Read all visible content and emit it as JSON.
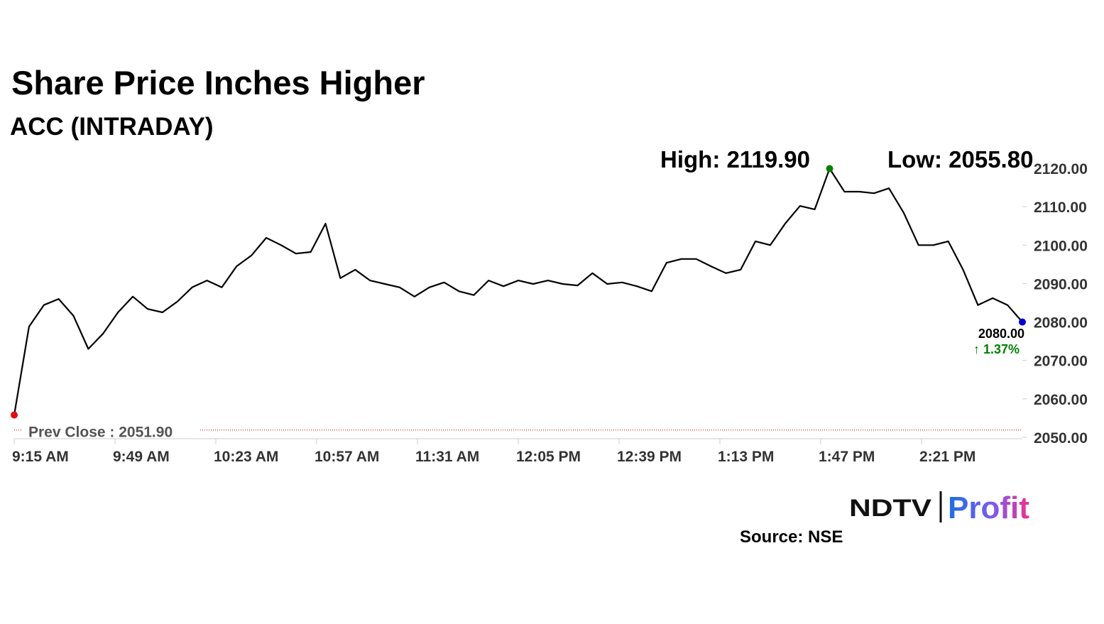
{
  "chart_data": {
    "type": "line",
    "title": "Share Price Inches Higher",
    "subtitle": "ACC (INTRADAY)",
    "x": [
      "9:15 AM",
      "9:20 AM",
      "9:25 AM",
      "9:30 AM",
      "9:35 AM",
      "9:40 AM",
      "9:45 AM",
      "9:50 AM",
      "9:55 AM",
      "10:00 AM",
      "10:05 AM",
      "10:10 AM",
      "10:15 AM",
      "10:20 AM",
      "10:25 AM",
      "10:30 AM",
      "10:35 AM",
      "10:40 AM",
      "10:45 AM",
      "10:50 AM",
      "10:55 AM",
      "11:00 AM",
      "11:05 AM",
      "11:10 AM",
      "11:15 AM",
      "11:20 AM",
      "11:25 AM",
      "11:30 AM",
      "11:35 AM",
      "11:40 AM",
      "11:45 AM",
      "11:50 AM",
      "11:55 AM",
      "12:00 PM",
      "12:05 PM",
      "12:10 PM",
      "12:15 PM",
      "12:20 PM",
      "12:25 PM",
      "12:30 PM",
      "12:35 PM",
      "12:40 PM",
      "12:45 PM",
      "12:50 PM",
      "12:55 PM",
      "1:00 PM",
      "1:05 PM",
      "1:10 PM",
      "1:15 PM",
      "1:20 PM",
      "1:25 PM",
      "1:30 PM",
      "1:35 PM",
      "1:40 PM",
      "1:45 PM",
      "1:50 PM",
      "1:55 PM",
      "2:00 PM",
      "2:05 PM",
      "2:10 PM",
      "2:15 PM",
      "2:20 PM",
      "2:25 PM",
      "2:30 PM",
      "2:35 PM",
      "2:40 PM",
      "2:45 PM",
      "2:50 PM",
      "2:55 PM"
    ],
    "series": [
      {
        "name": "ACC",
        "color": "#000000",
        "values": [
          2055.8,
          2078.8,
          2084.4,
          2086,
          2081.6,
          2073,
          2077,
          2082.5,
          2086.6,
          2083.4,
          2082.5,
          2085.3,
          2089,
          2090.8,
          2089,
          2094.5,
          2097.3,
          2101.9,
          2100,
          2097.8,
          2098.2,
          2105.6,
          2091.4,
          2093.6,
          2090.8,
          2089.9,
          2089,
          2086.6,
          2089,
          2090.3,
          2088,
          2087,
          2090.8,
          2089.3,
          2090.8,
          2089.9,
          2090.8,
          2089.9,
          2089.5,
          2092.7,
          2089.9,
          2090.3,
          2089.3,
          2088,
          2095.4,
          2096.4,
          2096.4,
          2094.5,
          2092.7,
          2093.6,
          2101,
          2100,
          2105.6,
          2110.2,
          2109.3,
          2119.9,
          2113.9,
          2113.9,
          2113.5,
          2114.8,
          2108.4,
          2100,
          2100,
          2101,
          2093.6,
          2084.4,
          2086.2,
          2084.4,
          2080
        ]
      }
    ],
    "xlim": [
      "9:15 AM",
      "2:55 PM"
    ],
    "xticks": [
      "9:15 AM",
      "9:49 AM",
      "10:23 AM",
      "10:57 AM",
      "11:31 AM",
      "12:05 PM",
      "12:39 PM",
      "1:13 PM",
      "1:47 PM",
      "2:21 PM"
    ],
    "ylim": [
      2050,
      2120
    ],
    "yticks": [
      {
        "value": 2050,
        "label": "2050.00"
      },
      {
        "value": 2060,
        "label": "2060.00"
      },
      {
        "value": 2070,
        "label": "2070.00"
      },
      {
        "value": 2080,
        "label": "2080.00"
      },
      {
        "value": 2090,
        "label": "2090.00"
      },
      {
        "value": 2100,
        "label": "2100.00"
      },
      {
        "value": 2110,
        "label": "2110.00"
      },
      {
        "value": 2120,
        "label": "2120.00"
      }
    ],
    "high": {
      "value": 2119.9,
      "label": "High: 2119.90",
      "color": "#008000"
    },
    "low": {
      "value": 2055.8,
      "label": "Low: 2055.80",
      "color": "#e01010"
    },
    "last": {
      "value": 2080,
      "label": "2080.00",
      "color": "#0000cc"
    },
    "change_label": "↑ 1.37%",
    "prev_close": {
      "value": 2051.9,
      "label": "Prev Close : 2051.90",
      "color": "#d00000"
    },
    "source": "Source: NSE",
    "logo": {
      "brand": "NDTV",
      "product": "Profit"
    }
  }
}
